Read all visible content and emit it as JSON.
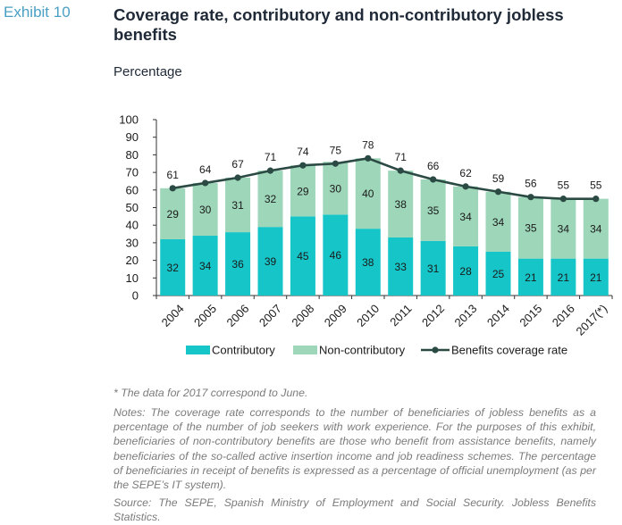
{
  "header": {
    "exhibit": "Exhibit 10",
    "title": "Coverage rate, contributory and non-contributory jobless benefits",
    "subtitle": "Percentage"
  },
  "chart_data": {
    "type": "bar",
    "stacked": true,
    "categories": [
      "2004",
      "2005",
      "2006",
      "2007",
      "2008",
      "2009",
      "2010",
      "2011",
      "2012",
      "2013",
      "2014",
      "2015",
      "2016",
      "2017(*)"
    ],
    "series": [
      {
        "name": "Contributory",
        "type": "bar",
        "color": "#16c5c8",
        "values": [
          32,
          34,
          36,
          39,
          45,
          46,
          38,
          33,
          31,
          28,
          25,
          21,
          21,
          21
        ]
      },
      {
        "name": "Non-contributory",
        "type": "bar",
        "color": "#9ed6b9",
        "values": [
          29,
          30,
          31,
          32,
          29,
          30,
          40,
          38,
          35,
          34,
          34,
          35,
          34,
          34
        ]
      },
      {
        "name": "Benefits coverage rate",
        "type": "line",
        "color": "#2b4a43",
        "values": [
          61,
          64,
          67,
          71,
          74,
          75,
          78,
          71,
          66,
          62,
          59,
          56,
          55,
          55
        ]
      }
    ],
    "ylim": [
      0,
      100
    ],
    "yticks": [
      0,
      10,
      20,
      30,
      40,
      50,
      60,
      70,
      80,
      90,
      100
    ],
    "xlabel": "",
    "ylabel": "",
    "grid": false,
    "legend_position": "bottom"
  },
  "notes": {
    "footnote": "* The data for 2017 correspond to June.",
    "notes": "Notes: The coverage rate corresponds to the number of beneficiaries of jobless benefits as a percentage of the number of job seekers with work experience. For the purposes of this exhibit, beneficiaries of non-contributory benefits are those who benefit from assistance benefits, namely beneficiaries of the so-called active insertion income and job readiness schemes. The percentage of beneficiaries in receipt of benefits is expressed as a percentage of official unemployment (as per the SEPE’s IT system).",
    "source": "Source: The SEPE, Spanish Ministry of Employment and Social Security. Jobless Benefits Statistics."
  }
}
